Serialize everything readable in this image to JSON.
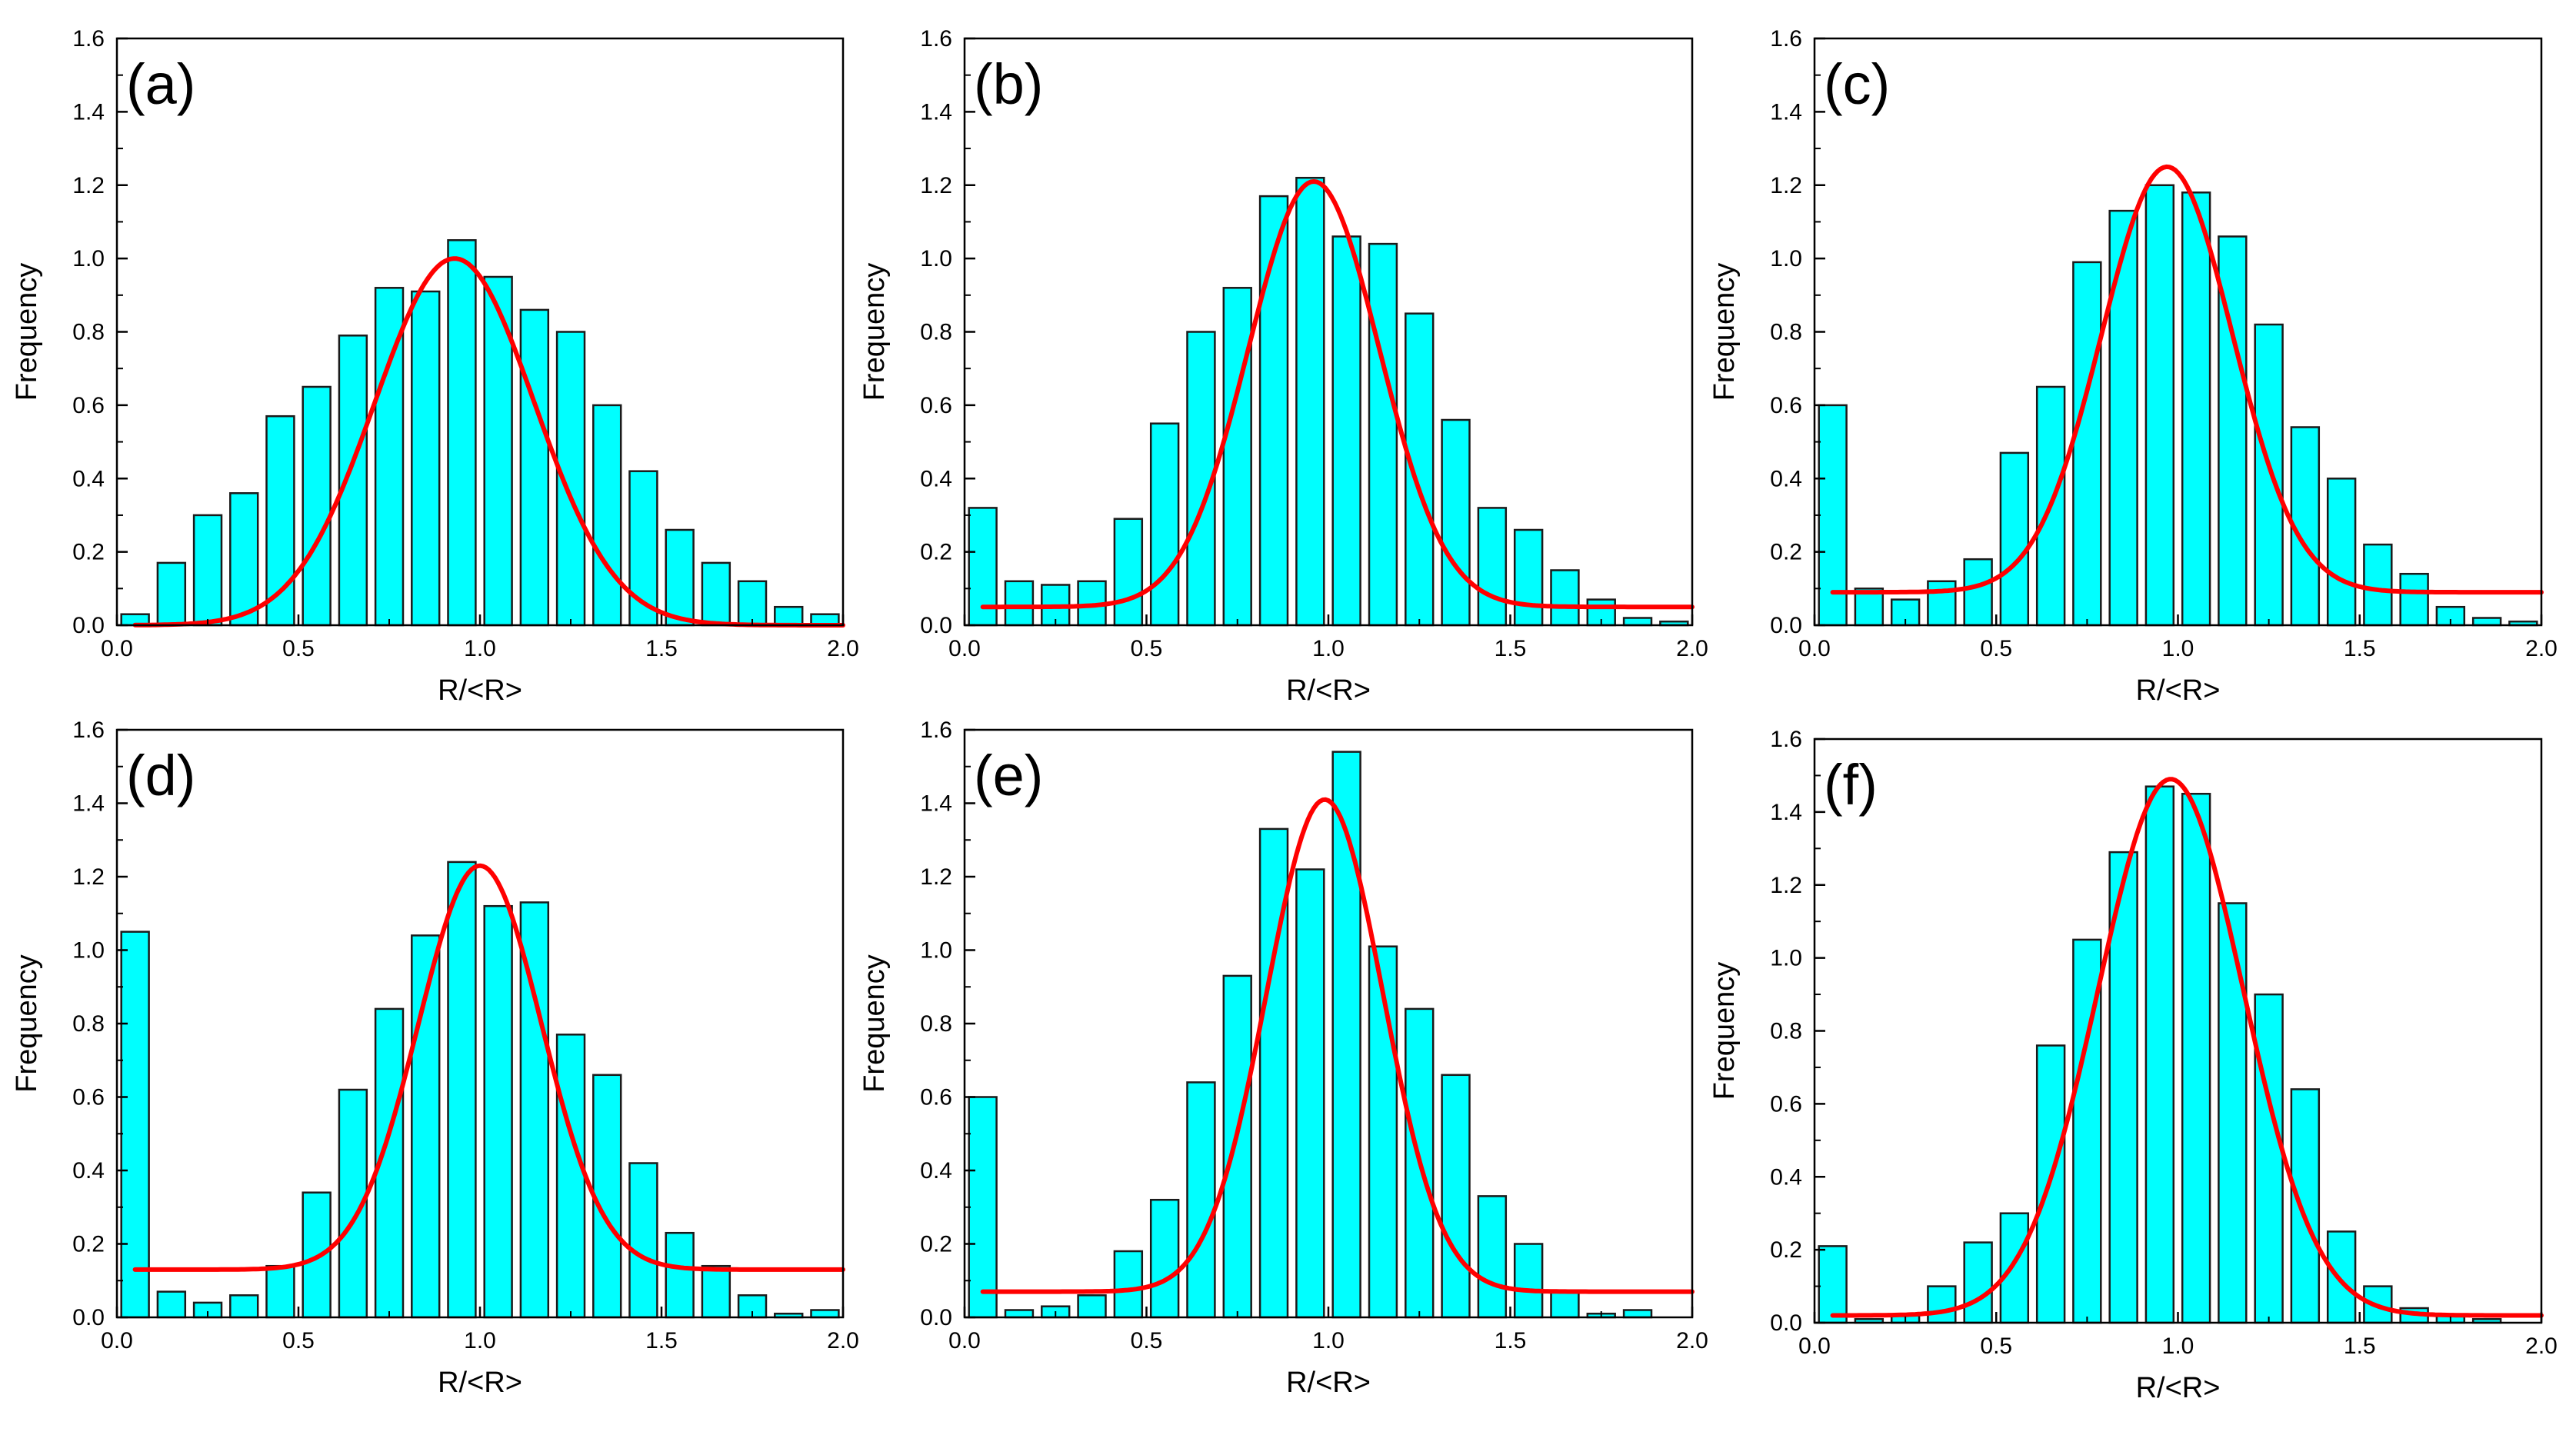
{
  "colors": {
    "bar_fill": "#00FFFF",
    "bar_stroke": "#1a1a1a",
    "curve": "#FF0000",
    "axis": "#000000"
  },
  "chart_data": [
    {
      "type": "bar",
      "panel_label": "(a)",
      "title": "",
      "xlabel": "R/<R>",
      "ylabel": "Frequency",
      "xlim": [
        0.0,
        2.0
      ],
      "ylim": [
        0.0,
        1.6
      ],
      "xticks": [
        "0.0",
        "0.5",
        "1.0",
        "1.5",
        "2.0"
      ],
      "yticks": [
        "0.0",
        "0.2",
        "0.4",
        "0.6",
        "0.8",
        "1.0",
        "1.2",
        "1.4",
        "1.6"
      ],
      "x": [
        0.05,
        0.15,
        0.25,
        0.35,
        0.45,
        0.55,
        0.65,
        0.75,
        0.85,
        0.95,
        1.05,
        1.15,
        1.25,
        1.35,
        1.45,
        1.55,
        1.65,
        1.75,
        1.85,
        1.95
      ],
      "values": [
        0.03,
        0.17,
        0.3,
        0.36,
        0.57,
        0.65,
        0.79,
        0.92,
        0.91,
        1.05,
        0.95,
        0.86,
        0.8,
        0.6,
        0.42,
        0.26,
        0.17,
        0.12,
        0.05,
        0.03
      ],
      "fit": {
        "type": "gauss",
        "y0": 0.0,
        "A": 1.0,
        "xc": 0.93,
        "w": 0.44,
        "x_range": [
          0.05,
          2.0
        ]
      }
    },
    {
      "type": "bar",
      "panel_label": "(b)",
      "title": "",
      "xlabel": "R/<R>",
      "ylabel": "Frequency",
      "xlim": [
        0.0,
        2.0
      ],
      "ylim": [
        0.0,
        1.6
      ],
      "xticks": [
        "0.0",
        "0.5",
        "1.0",
        "1.5",
        "2.0"
      ],
      "yticks": [
        "0.0",
        "0.2",
        "0.4",
        "0.6",
        "0.8",
        "1.0",
        "1.2",
        "1.4",
        "1.6"
      ],
      "x": [
        0.05,
        0.15,
        0.25,
        0.35,
        0.45,
        0.55,
        0.65,
        0.75,
        0.85,
        0.95,
        1.05,
        1.15,
        1.25,
        1.35,
        1.45,
        1.55,
        1.65,
        1.75,
        1.85,
        1.95
      ],
      "values": [
        0.32,
        0.12,
        0.11,
        0.12,
        0.29,
        0.55,
        0.8,
        0.92,
        1.17,
        1.22,
        1.06,
        1.04,
        0.85,
        0.56,
        0.32,
        0.26,
        0.15,
        0.07,
        0.02,
        0.01
      ],
      "fit": {
        "type": "gauss",
        "y0": 0.05,
        "A": 1.16,
        "xc": 0.96,
        "w": 0.36,
        "x_range": [
          0.05,
          2.0
        ]
      }
    },
    {
      "type": "bar",
      "panel_label": "(c)",
      "title": "",
      "xlabel": "R/<R>",
      "ylabel": "Frequency",
      "xlim": [
        0.0,
        2.0
      ],
      "ylim": [
        0.0,
        1.6
      ],
      "xticks": [
        "0.0",
        "0.5",
        "1.0",
        "1.5",
        "2.0"
      ],
      "yticks": [
        "0.0",
        "0.2",
        "0.4",
        "0.6",
        "0.8",
        "1.0",
        "1.2",
        "1.4",
        "1.6"
      ],
      "x": [
        0.05,
        0.15,
        0.25,
        0.35,
        0.45,
        0.55,
        0.65,
        0.75,
        0.85,
        0.95,
        1.05,
        1.15,
        1.25,
        1.35,
        1.45,
        1.55,
        1.65,
        1.75,
        1.85,
        1.95
      ],
      "values": [
        0.6,
        0.1,
        0.07,
        0.12,
        0.18,
        0.47,
        0.65,
        0.99,
        1.13,
        1.2,
        1.18,
        1.06,
        0.82,
        0.54,
        0.4,
        0.22,
        0.14,
        0.05,
        0.02,
        0.01
      ],
      "fit": {
        "type": "gauss",
        "y0": 0.09,
        "A": 1.16,
        "xc": 0.97,
        "w": 0.36,
        "x_range": [
          0.05,
          2.0
        ]
      }
    },
    {
      "type": "bar",
      "panel_label": "(d)",
      "title": "",
      "xlabel": "R/<R>",
      "ylabel": "Frequency",
      "xlim": [
        0.0,
        2.0
      ],
      "ylim": [
        0.0,
        1.6
      ],
      "xticks": [
        "0.0",
        "0.5",
        "1.0",
        "1.5",
        "2.0"
      ],
      "yticks": [
        "0.0",
        "0.2",
        "0.4",
        "0.6",
        "0.8",
        "1.0",
        "1.2",
        "1.4",
        "1.6"
      ],
      "x": [
        0.05,
        0.15,
        0.25,
        0.35,
        0.45,
        0.55,
        0.65,
        0.75,
        0.85,
        0.95,
        1.05,
        1.15,
        1.25,
        1.35,
        1.45,
        1.55,
        1.65,
        1.75,
        1.85,
        1.95
      ],
      "values": [
        1.05,
        0.07,
        0.04,
        0.06,
        0.14,
        0.34,
        0.62,
        0.84,
        1.04,
        1.24,
        1.12,
        1.13,
        0.77,
        0.66,
        0.42,
        0.23,
        0.14,
        0.06,
        0.01,
        0.02
      ],
      "fit": {
        "type": "gauss",
        "y0": 0.13,
        "A": 1.1,
        "xc": 1.0,
        "w": 0.34,
        "x_range": [
          0.05,
          2.0
        ]
      }
    },
    {
      "type": "bar",
      "panel_label": "(e)",
      "title": "",
      "xlabel": "R/<R>",
      "ylabel": "Frequency",
      "xlim": [
        0.0,
        2.0
      ],
      "ylim": [
        0.0,
        1.6
      ],
      "xticks": [
        "0.0",
        "0.5",
        "1.0",
        "1.5",
        "2.0"
      ],
      "yticks": [
        "0.0",
        "0.2",
        "0.4",
        "0.6",
        "0.8",
        "1.0",
        "1.2",
        "1.4",
        "1.6"
      ],
      "x": [
        0.05,
        0.15,
        0.25,
        0.35,
        0.45,
        0.55,
        0.65,
        0.75,
        0.85,
        0.95,
        1.05,
        1.15,
        1.25,
        1.35,
        1.45,
        1.55,
        1.65,
        1.75,
        1.85,
        1.95
      ],
      "values": [
        0.6,
        0.02,
        0.03,
        0.06,
        0.18,
        0.32,
        0.64,
        0.93,
        1.33,
        1.22,
        1.54,
        1.01,
        0.84,
        0.66,
        0.33,
        0.2,
        0.07,
        0.01,
        0.02,
        0.0
      ],
      "fit": {
        "type": "gauss",
        "y0": 0.07,
        "A": 1.34,
        "xc": 0.99,
        "w": 0.32,
        "x_range": [
          0.05,
          2.0
        ]
      }
    },
    {
      "type": "bar",
      "panel_label": "(f)",
      "title": "",
      "xlabel": "R/<R>",
      "ylabel": "Frequency",
      "xlim": [
        0.0,
        2.0
      ],
      "ylim": [
        0.0,
        1.6
      ],
      "xticks": [
        "0.0",
        "0.5",
        "1.0",
        "1.5",
        "2.0"
      ],
      "yticks": [
        "0.0",
        "0.2",
        "0.4",
        "0.6",
        "0.8",
        "1.0",
        "1.2",
        "1.4",
        "1.6"
      ],
      "x": [
        0.05,
        0.15,
        0.25,
        0.35,
        0.45,
        0.55,
        0.65,
        0.75,
        0.85,
        0.95,
        1.05,
        1.15,
        1.25,
        1.35,
        1.45,
        1.55,
        1.65,
        1.75,
        1.85,
        1.95
      ],
      "values": [
        0.21,
        0.01,
        0.02,
        0.1,
        0.22,
        0.3,
        0.76,
        1.05,
        1.29,
        1.47,
        1.45,
        1.15,
        0.9,
        0.64,
        0.25,
        0.1,
        0.04,
        0.02,
        0.01,
        0.0
      ],
      "fit": {
        "type": "gauss",
        "y0": 0.02,
        "A": 1.47,
        "xc": 0.98,
        "w": 0.4,
        "x_range": [
          0.05,
          2.0
        ]
      }
    }
  ]
}
